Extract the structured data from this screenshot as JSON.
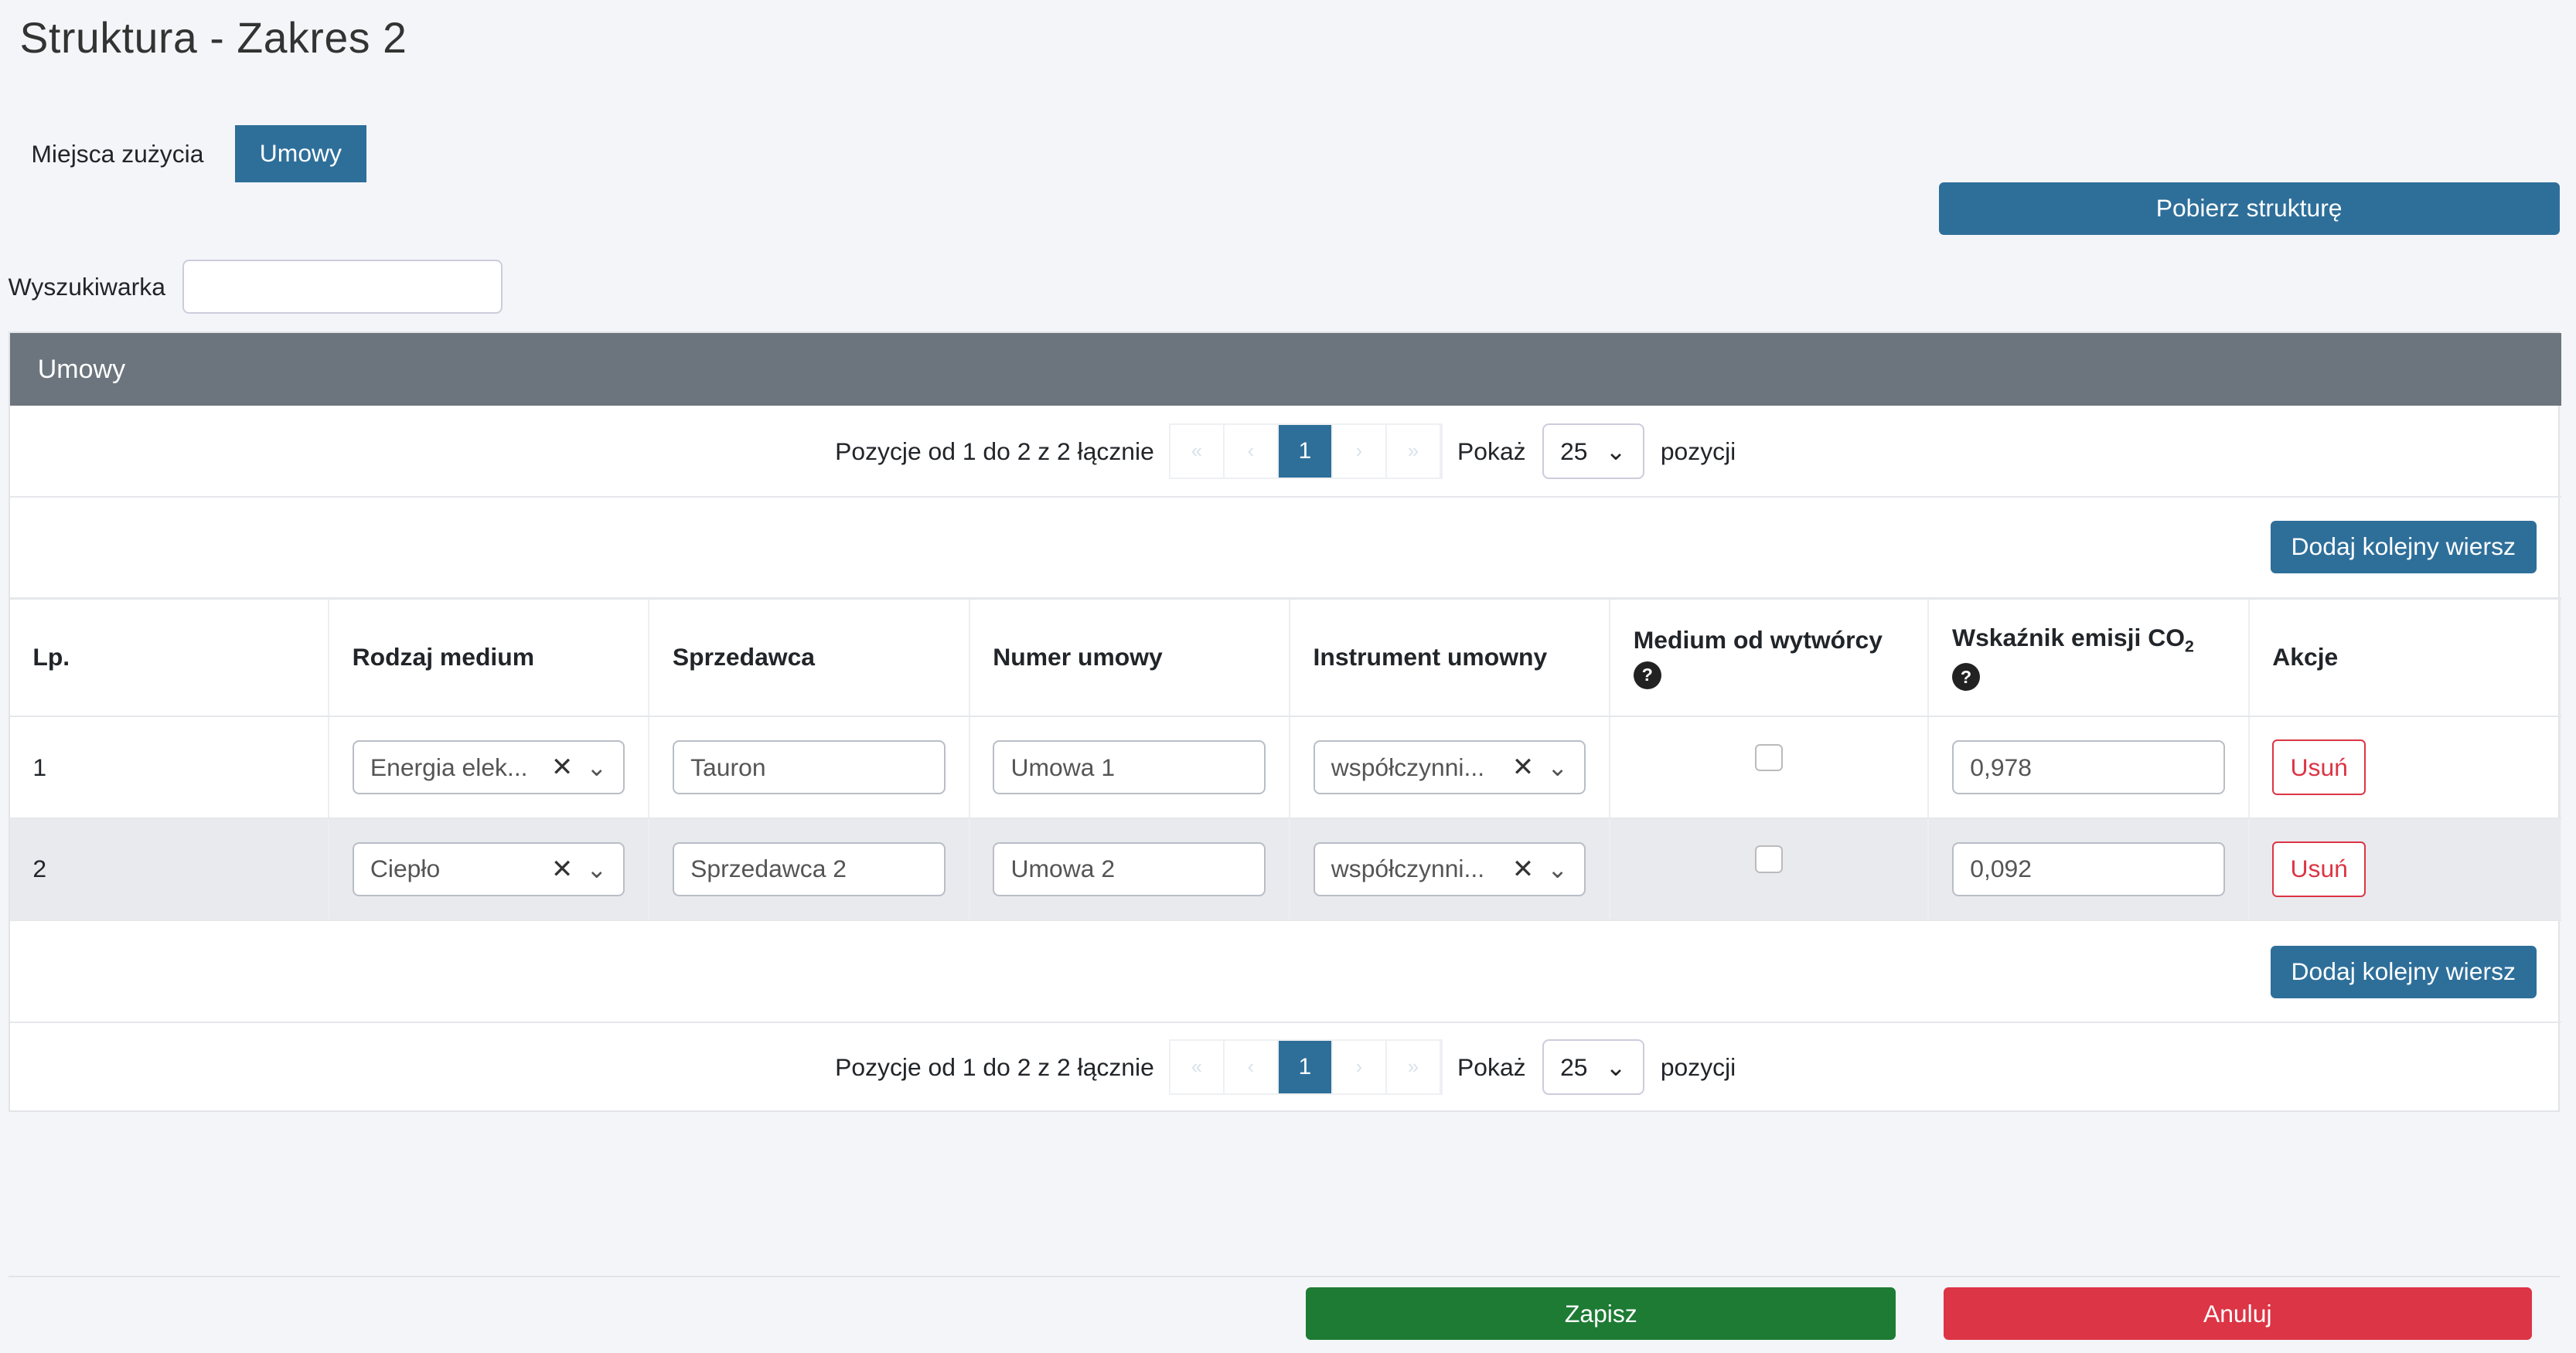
{
  "page": {
    "title": "Struktura - Zakres 2"
  },
  "tabs": [
    {
      "label": "Miejsca zużycia",
      "active": false
    },
    {
      "label": "Umowy",
      "active": true
    }
  ],
  "download_button": "Pobierz strukturę",
  "search": {
    "label": "Wyszukiwarka",
    "value": "",
    "placeholder": ""
  },
  "card": {
    "title": "Umowy",
    "pagination": {
      "summary": "Pozycje od 1 do 2 z 2 łącznie",
      "first": "«",
      "prev": "‹",
      "current": "1",
      "next": "›",
      "last": "»",
      "show_label": "Pokaż",
      "page_size": "25",
      "items_label": "pozycji"
    },
    "add_row_button": "Dodaj kolejny wiersz",
    "columns": [
      "Lp.",
      "Rodzaj medium",
      "Sprzedawca",
      "Numer umowy",
      "Instrument umowny",
      "Medium od wytwórcy",
      "Wskaźnik emisji CO",
      "Akcje"
    ],
    "co2_subscript": "2",
    "help_glyph": "?",
    "rows": [
      {
        "lp": "1",
        "medium": "Energia elek...",
        "seller": "Tauron",
        "contract": "Umowa 1",
        "instrument": "współczynni...",
        "from_producer": false,
        "emission": "0,978",
        "action": "Usuń"
      },
      {
        "lp": "2",
        "medium": "Ciepło",
        "seller": "Sprzedawca 2",
        "contract": "Umowa 2",
        "instrument": "współczynni...",
        "from_producer": false,
        "emission": "0,092",
        "action": "Usuń"
      }
    ]
  },
  "footer": {
    "save": "Zapisz",
    "cancel": "Anuluj"
  },
  "colors": {
    "primary": "#2e6f9a",
    "header": "#6c757d",
    "success": "#1e7b34",
    "danger": "#dc3545"
  }
}
